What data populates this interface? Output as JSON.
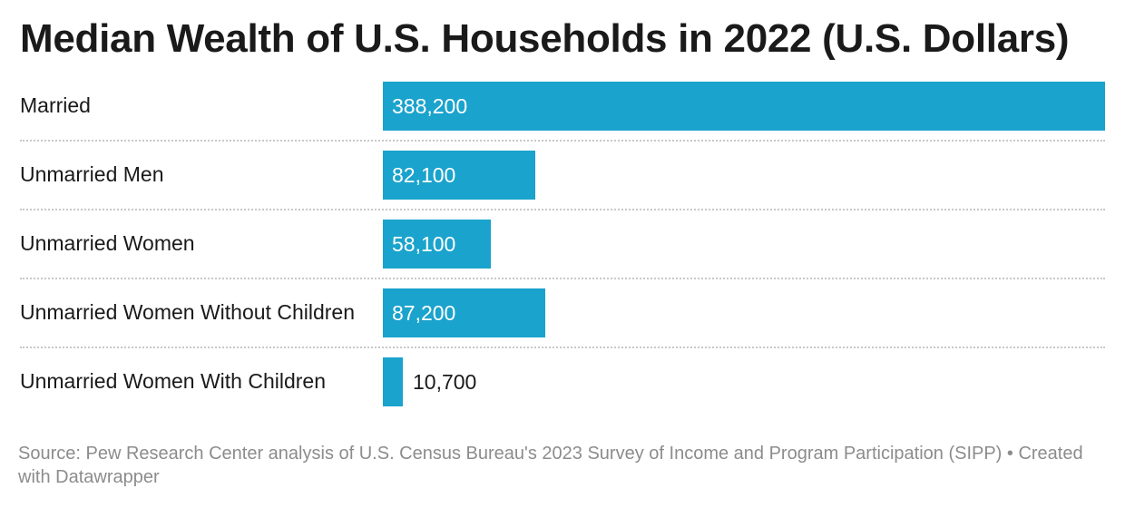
{
  "title": "Median Wealth of U.S. Households in 2022 (U.S. Dollars)",
  "chart_data": {
    "type": "bar",
    "orientation": "horizontal",
    "categories": [
      "Married",
      "Unmarried Men",
      "Unmarried Women",
      "Unmarried Women Without Children",
      "Unmarried Women With Children"
    ],
    "values": [
      388200,
      82100,
      58100,
      87200,
      10700
    ],
    "value_labels": [
      "388,200",
      "82,100",
      "58,100",
      "87,200",
      "10,700"
    ],
    "title": "Median Wealth of U.S. Households in 2022 (U.S. Dollars)",
    "xlabel": "",
    "ylabel": "",
    "xlim": [
      0,
      388200
    ],
    "grid": false,
    "legend": "none",
    "bar_color": "#1aa3cc"
  },
  "footer": {
    "source": "Source: Pew Research Center analysis of U.S. Census Bureau's 2023 Survey of Income and Program Participation (SIPP) • Created with Datawrapper"
  }
}
